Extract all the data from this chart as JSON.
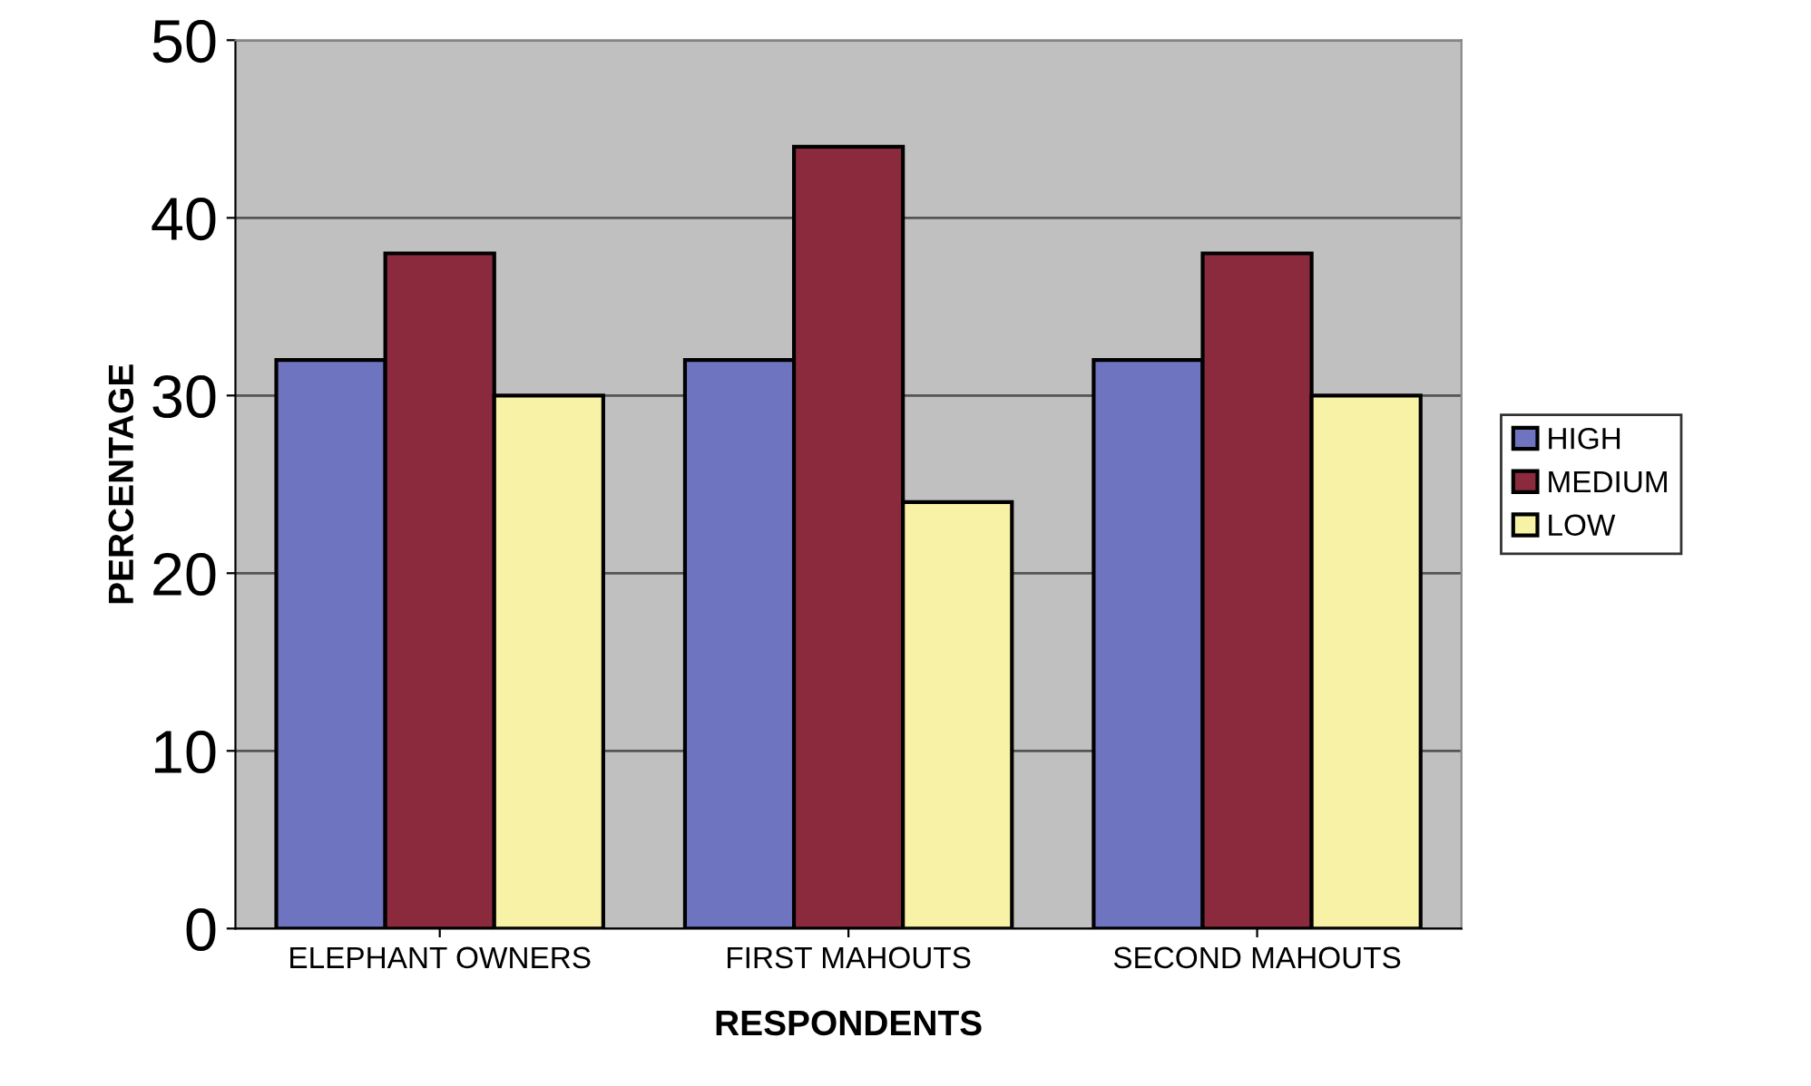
{
  "chart_data": {
    "type": "bar",
    "xlabel": "RESPONDENTS",
    "ylabel": "PERCENTAGE",
    "categories": [
      "ELEPHANT OWNERS",
      "FIRST MAHOUTS",
      "SECOND MAHOUTS"
    ],
    "series": [
      {
        "name": "HIGH",
        "color": "#6e74c0",
        "values": [
          32,
          32,
          32
        ]
      },
      {
        "name": "MEDIUM",
        "color": "#8a2a3c",
        "values": [
          38,
          44,
          38
        ]
      },
      {
        "name": "LOW",
        "color": "#f8f2a6",
        "values": [
          30,
          24,
          30
        ]
      }
    ],
    "ylim": [
      0,
      50
    ],
    "yticks": [
      0,
      10,
      20,
      30,
      40,
      50
    ],
    "grid": "y",
    "legend": "right"
  }
}
